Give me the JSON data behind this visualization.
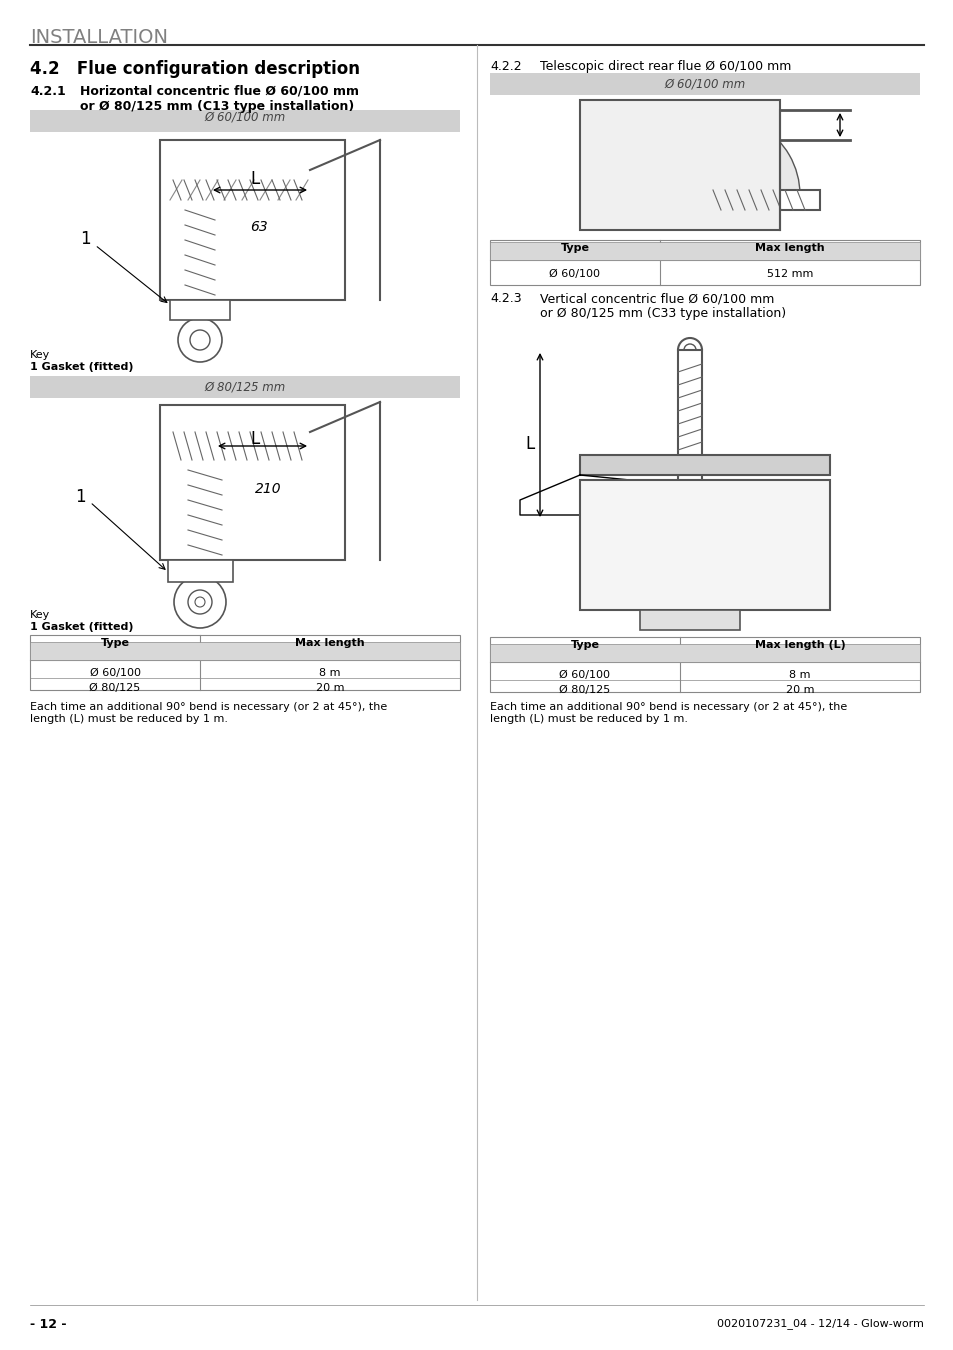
{
  "page_title": "INSTALLATION",
  "section_title": "4.2   Flue configuration description",
  "sub_title_left_1": "4.2.1",
  "sub_title_left_1_text": "Horizontal concentric flue Ø 60/100 mm\nor Ø 80/125 mm (C13 type installation)",
  "sub_title_right_1": "4.2.2",
  "sub_title_right_1_text": "Telescopic direct rear flue Ø 60/100 mm",
  "sub_title_right_2": "4.2.3",
  "sub_title_right_2_text": "Vertical concentric flue Ø 60/100 mm\nor Ø 80/125 mm (C33 type installation)",
  "gray_bar_1": "Ø 60/100 mm",
  "gray_bar_2": "Ø 80/125 mm",
  "gray_bar_3": "Ø 60/100 mm",
  "key_label": "Key",
  "key_item": "1 Gasket (fitted)",
  "table1_header": [
    "Type",
    "Max length"
  ],
  "table1_rows": [
    [
      "Ø 60/100",
      "512 mm"
    ]
  ],
  "table2_header": [
    "Type",
    "Max length"
  ],
  "table2_rows": [
    [
      "Ø 60/100",
      "8 m"
    ],
    [
      "Ø 80/125",
      "20 m"
    ]
  ],
  "table3_header": [
    "Type",
    "Max length (L)"
  ],
  "table3_rows": [
    [
      "Ø 60/100",
      "8 m"
    ],
    [
      "Ø 80/125",
      "20 m"
    ]
  ],
  "note_left": "Each time an additional 90° bend is necessary (or 2 at 45°), the\nlength (L) must be reduced by 1 m.",
  "note_right": "Each time an additional 90° bend is necessary (or 2 at 45°), the\nlength (L) must be reduced by 1 m.",
  "footer_left": "- 12 -",
  "footer_right": "0020107231_04 - 12/14 - Glow-worm",
  "bg_color": "#ffffff",
  "text_color": "#231f20",
  "gray_color": "#c8c8c8",
  "line_color": "#231f20",
  "gray_bar_text_color": "#555555",
  "title_gray": "#808080"
}
